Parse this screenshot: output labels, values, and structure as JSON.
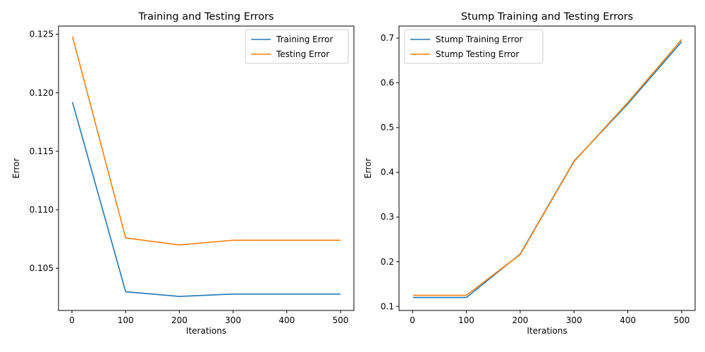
{
  "chart_data": [
    {
      "type": "line",
      "title": "Training and Testing Errors",
      "xlabel": "Iterations",
      "ylabel": "Error",
      "x": [
        1,
        100,
        200,
        300,
        400,
        500
      ],
      "xlim": [
        -25,
        525
      ],
      "ylim": [
        0.1014,
        0.1257
      ],
      "xticks": [
        0,
        100,
        200,
        300,
        400,
        500
      ],
      "yticks": [
        0.105,
        0.11,
        0.115,
        0.12,
        0.125
      ],
      "ytick_labels": [
        "0.105",
        "0.110",
        "0.115",
        "0.120",
        "0.125"
      ],
      "legend_position": "upper-right",
      "grid": false,
      "series": [
        {
          "name": "Training Error",
          "color": "#1f77b4",
          "values": [
            0.1192,
            0.103,
            0.1026,
            0.1028,
            0.1028,
            0.1028
          ]
        },
        {
          "name": "Testing Error",
          "color": "#ff7f0e",
          "values": [
            0.1248,
            0.1076,
            0.107,
            0.1074,
            0.1074,
            0.1074
          ]
        }
      ]
    },
    {
      "type": "line",
      "title": "Stump Training and Testing Errors",
      "xlabel": "Iterations",
      "ylabel": "Error",
      "x": [
        1,
        100,
        200,
        300,
        400,
        500
      ],
      "xlim": [
        -25,
        525
      ],
      "ylim": [
        0.091,
        0.727
      ],
      "xticks": [
        0,
        100,
        200,
        300,
        400,
        500
      ],
      "yticks": [
        0.1,
        0.2,
        0.3,
        0.4,
        0.5,
        0.6,
        0.7
      ],
      "ytick_labels": [
        "0.1",
        "0.2",
        "0.3",
        "0.4",
        "0.5",
        "0.6",
        "0.7"
      ],
      "legend_position": "upper-left",
      "grid": false,
      "series": [
        {
          "name": "Stump Training Error",
          "color": "#1f77b4",
          "values": [
            0.12,
            0.12,
            0.217,
            0.425,
            0.553,
            0.692
          ]
        },
        {
          "name": "Stump Testing Error",
          "color": "#ff7f0e",
          "values": [
            0.125,
            0.125,
            0.216,
            0.424,
            0.556,
            0.697
          ]
        }
      ]
    }
  ]
}
